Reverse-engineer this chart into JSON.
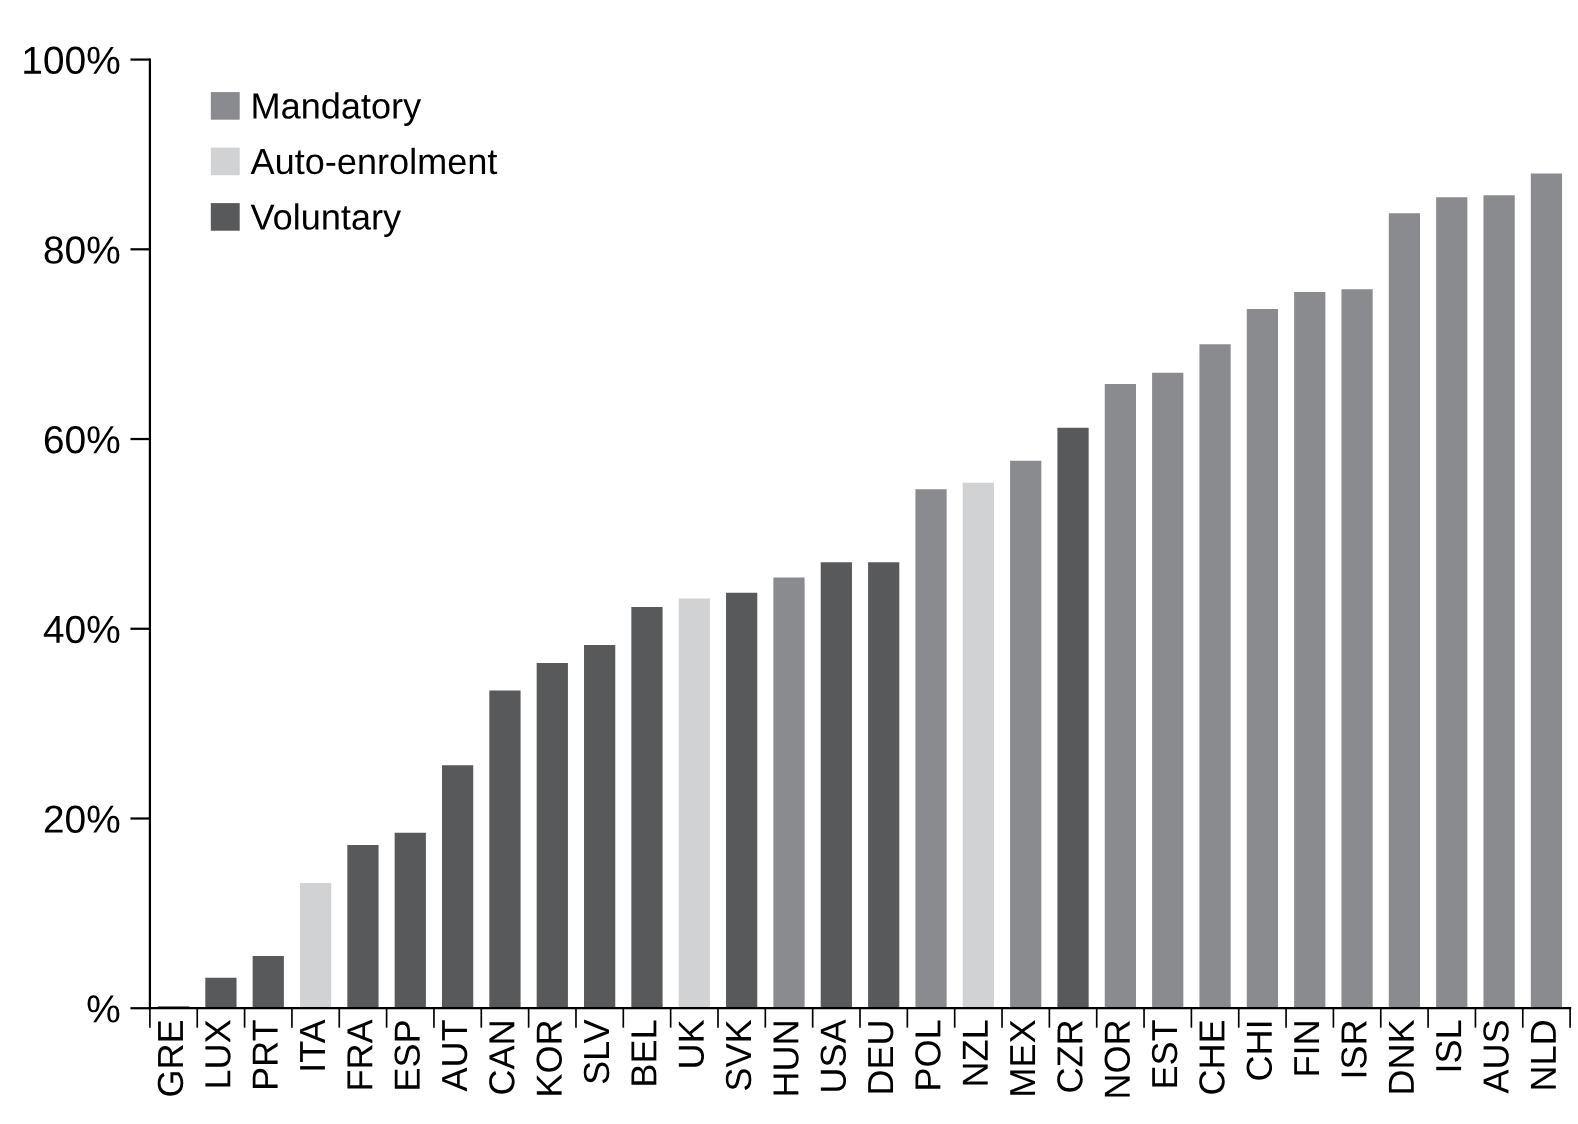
{
  "chart_data": {
    "type": "bar",
    "categories": [
      "GRE",
      "LUX",
      "PRT",
      "ITA",
      "FRA",
      "ESP",
      "AUT",
      "CAN",
      "KOR",
      "SLV",
      "BEL",
      "UK",
      "SVK",
      "HUN",
      "USA",
      "DEU",
      "POL",
      "NZL",
      "MEX",
      "CZR",
      "NOR",
      "EST",
      "CHE",
      "CHI",
      "FIN",
      "ISR",
      "DNK",
      "ISL",
      "AUS",
      "NLD"
    ],
    "series": [
      {
        "name": "Mandatory",
        "color": "#8a8b8f",
        "values": [
          null,
          null,
          null,
          null,
          null,
          null,
          null,
          null,
          null,
          null,
          null,
          null,
          null,
          45.4,
          null,
          null,
          54.7,
          null,
          57.7,
          null,
          65.8,
          67.0,
          70.0,
          73.7,
          75.5,
          75.8,
          83.8,
          85.5,
          85.7,
          88.0
        ]
      },
      {
        "name": "Auto-enrolment",
        "color": "#d1d2d4",
        "values": [
          null,
          null,
          null,
          13.2,
          null,
          null,
          null,
          null,
          null,
          null,
          null,
          43.2,
          null,
          null,
          null,
          null,
          null,
          55.4,
          null,
          null,
          null,
          null,
          null,
          null,
          null,
          null,
          null,
          null,
          null,
          null
        ]
      },
      {
        "name": "Voluntary",
        "color": "#58595b",
        "values": [
          0.2,
          3.2,
          5.5,
          null,
          17.2,
          18.5,
          25.6,
          33.5,
          36.4,
          38.3,
          42.3,
          null,
          43.8,
          null,
          47.0,
          47.0,
          null,
          null,
          null,
          61.2,
          null,
          null,
          null,
          null,
          null,
          null,
          null,
          null,
          null,
          null
        ]
      }
    ],
    "ylim": [
      0,
      100
    ],
    "yticks": [
      {
        "value": 0,
        "label": "%"
      },
      {
        "value": 20,
        "label": "20%"
      },
      {
        "value": 40,
        "label": "40%"
      },
      {
        "value": 60,
        "label": "60%"
      },
      {
        "value": 80,
        "label": "80%"
      },
      {
        "value": 100,
        "label": "100%"
      }
    ],
    "grid": false,
    "legend": "top left"
  }
}
